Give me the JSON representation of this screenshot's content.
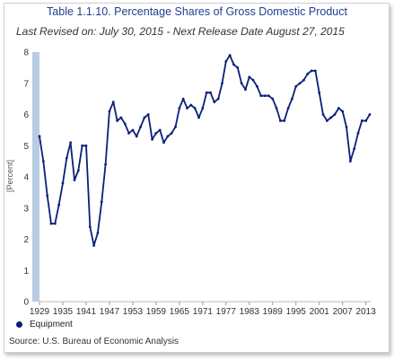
{
  "title": "Table 1.1.10. Percentage Shares of Gross Domestic Product",
  "subtitle": "Last Revised on: July 30, 2015 - Next Release Date August 27, 2015",
  "source": "Source: U.S. Bureau of Economic  Analysis",
  "colors": {
    "line": "#0b1f7a",
    "title": "#1f3f8f",
    "axis_band": "#b8cce4"
  },
  "chart_data": {
    "type": "line",
    "title": "Table 1.1.10. Percentage Shares of Gross Domestic Product",
    "ylabel": "[Percent]",
    "xlabel": "",
    "ylim": [
      0,
      8
    ],
    "yticks": [
      0,
      1,
      2,
      3,
      4,
      5,
      6,
      7,
      8
    ],
    "xticks": [
      1929,
      1935,
      1941,
      1947,
      1953,
      1959,
      1965,
      1971,
      1977,
      1983,
      1989,
      1995,
      2001,
      2007,
      2013
    ],
    "grid": false,
    "legend_position": "bottom-left",
    "series": [
      {
        "name": "Equipment",
        "x": [
          1929,
          1930,
          1931,
          1932,
          1933,
          1934,
          1935,
          1936,
          1937,
          1938,
          1939,
          1940,
          1941,
          1942,
          1943,
          1944,
          1945,
          1946,
          1947,
          1948,
          1949,
          1950,
          1951,
          1952,
          1953,
          1954,
          1955,
          1956,
          1957,
          1958,
          1959,
          1960,
          1961,
          1962,
          1963,
          1964,
          1965,
          1966,
          1967,
          1968,
          1969,
          1970,
          1971,
          1972,
          1973,
          1974,
          1975,
          1976,
          1977,
          1978,
          1979,
          1980,
          1981,
          1982,
          1983,
          1984,
          1985,
          1986,
          1987,
          1988,
          1989,
          1990,
          1991,
          1992,
          1993,
          1994,
          1995,
          1996,
          1997,
          1998,
          1999,
          2000,
          2001,
          2002,
          2003,
          2004,
          2005,
          2006,
          2007,
          2008,
          2009,
          2010,
          2011,
          2012,
          2013,
          2014
        ],
        "y": [
          5.3,
          4.5,
          3.4,
          2.5,
          2.5,
          3.1,
          3.8,
          4.6,
          5.1,
          3.9,
          4.2,
          5.0,
          5.0,
          2.4,
          1.8,
          2.2,
          3.2,
          4.4,
          6.1,
          6.4,
          5.8,
          5.9,
          5.7,
          5.4,
          5.5,
          5.3,
          5.6,
          5.9,
          6.0,
          5.2,
          5.4,
          5.5,
          5.1,
          5.3,
          5.4,
          5.6,
          6.2,
          6.5,
          6.2,
          6.3,
          6.2,
          5.9,
          6.2,
          6.7,
          6.7,
          6.4,
          6.5,
          7.0,
          7.7,
          7.9,
          7.6,
          7.5,
          7.0,
          6.8,
          7.2,
          7.1,
          6.9,
          6.6,
          6.6,
          6.6,
          6.5,
          6.2,
          5.8,
          5.8,
          6.2,
          6.5,
          6.9,
          7.0,
          7.1,
          7.3,
          7.4,
          7.4,
          6.7,
          6.0,
          5.8,
          5.9,
          6.0,
          6.2,
          6.1,
          5.6,
          4.5,
          4.9,
          5.4,
          5.8,
          5.8,
          6.0
        ]
      }
    ]
  }
}
